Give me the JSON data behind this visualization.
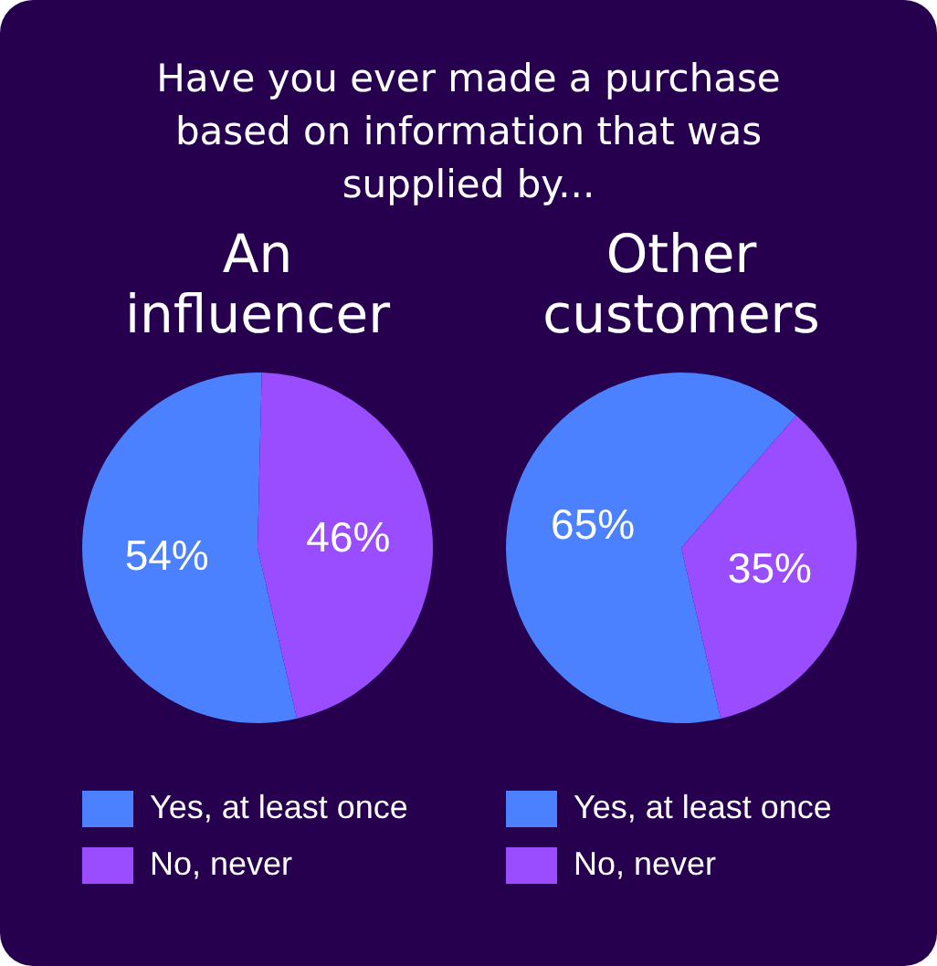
{
  "chart_data": [
    {
      "type": "pie",
      "title": "Have you ever made a purchase based on information that was supplied by...",
      "subtitle": "An influencer",
      "categories": [
        "Yes, at least once",
        "No, never"
      ],
      "values": [
        54,
        46
      ],
      "value_labels": [
        "54%",
        "46%"
      ],
      "colors": [
        "#4b80ff",
        "#9a4cff"
      ],
      "legend": "bottom"
    },
    {
      "type": "pie",
      "subtitle": "Other customers",
      "categories": [
        "Yes, at least once",
        "No, never"
      ],
      "values": [
        65,
        35
      ],
      "value_labels": [
        "65%",
        "35%"
      ],
      "colors": [
        "#4b80ff",
        "#9a4cff"
      ],
      "legend": "bottom"
    }
  ]
}
